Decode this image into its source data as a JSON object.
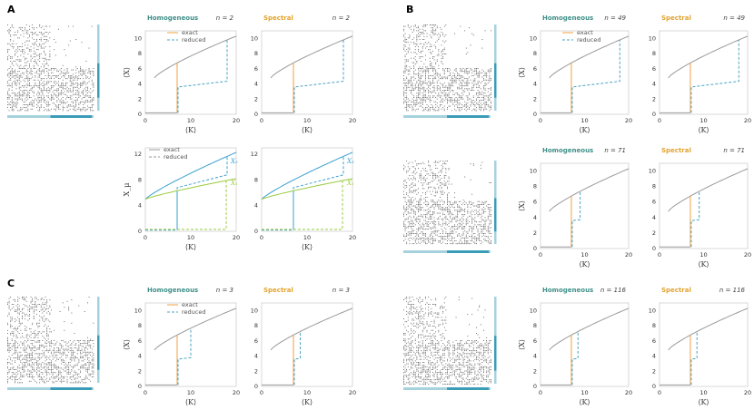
{
  "colors": {
    "homogeneous": "#3f8f88",
    "spectral": "#e3a32e",
    "exact": "#9a9a9a",
    "reduced": "#4aa3c5",
    "exactSel": "#f0a040",
    "blue": "#3a9fd0",
    "green": "#9acb3e",
    "bar_light": "#a6d2de",
    "bar_dark": "#3b9cb8"
  },
  "panels": [
    {
      "id": "a",
      "label": "A"
    },
    {
      "id": "b",
      "label": "B"
    },
    {
      "id": "c",
      "label": "C"
    }
  ],
  "legend": {
    "exact": "exact",
    "reduced": "reduced"
  },
  "chart_data": [
    {
      "id": "A-hom",
      "type": "line",
      "title": "Homogeneous",
      "n_label": "n = 2",
      "xlabel": "⟨K⟩",
      "ylabel": "⟨X⟩",
      "xlim": [
        0,
        20
      ],
      "ylim": [
        0,
        11
      ],
      "xticks": [
        "0",
        "10",
        "20"
      ],
      "yticks": [
        "0",
        "2",
        "4",
        "6",
        "8",
        "10"
      ],
      "legend": true,
      "exact": {
        "x0": 2,
        "x1": 20,
        "y0": 4.8,
        "y1": 10.3,
        "jump": 7
      },
      "reduced": {
        "jump_up": 7,
        "low": 3.7,
        "high_to": 17.8,
        "jump2": 18.2,
        "level_mid": 4.6,
        "y0": 5.0,
        "y1": 10.3
      }
    },
    {
      "id": "A-spec",
      "type": "line",
      "title": "Spectral",
      "n_label": "n = 2",
      "xlabel": "⟨K⟩",
      "ylabel": "",
      "xlim": [
        0,
        20
      ],
      "ylim": [
        0,
        11
      ],
      "xticks": [
        "0",
        "10",
        "20"
      ],
      "yticks": [
        "0",
        "2",
        "4",
        "6",
        "8",
        "10"
      ],
      "legend": false,
      "exact": {
        "x0": 2,
        "x1": 20,
        "y0": 4.8,
        "y1": 10.3,
        "jump": 7
      },
      "reduced": {
        "jump_up": 7,
        "low": 3.7,
        "high_to": 17.8,
        "jump2": 18.2,
        "level_mid": 4.6,
        "y0": 5.0,
        "y1": 10.3
      }
    },
    {
      "id": "A-hom2",
      "type": "line",
      "title": "",
      "n_label": "",
      "xlabel": "⟨K⟩",
      "ylabel": "X_μ",
      "xlim": [
        0,
        20
      ],
      "ylim": [
        0,
        13
      ],
      "xticks": [
        "0",
        "10",
        "20"
      ],
      "yticks": [
        "0",
        "4",
        "8",
        "12"
      ],
      "legend": true,
      "curves_label": [
        "X₁",
        "X₂"
      ]
    },
    {
      "id": "A-spec2",
      "type": "line",
      "title": "",
      "n_label": "",
      "xlabel": "⟨K⟩",
      "ylabel": "",
      "xlim": [
        0,
        20
      ],
      "ylim": [
        0,
        13
      ],
      "xticks": [
        "0",
        "10",
        "20"
      ],
      "yticks": [
        "0",
        "4",
        "8",
        "12"
      ],
      "legend": false,
      "curves_label": [
        "X₁",
        "X₂"
      ]
    },
    {
      "id": "B-hom",
      "type": "line",
      "title": "Homogeneous",
      "n_label": "n = 49",
      "xlabel": "⟨K⟩",
      "ylabel": "⟨X⟩",
      "xlim": [
        0,
        20
      ],
      "ylim": [
        0,
        11
      ],
      "xticks": [
        "0",
        "10",
        "20"
      ],
      "yticks": [
        "0",
        "2",
        "4",
        "6",
        "8",
        "10"
      ],
      "legend": true
    },
    {
      "id": "B-spec",
      "type": "line",
      "title": "Spectral",
      "n_label": "n = 49",
      "xlabel": "⟨K⟩",
      "ylabel": "",
      "xlim": [
        0,
        20
      ],
      "ylim": [
        0,
        11
      ],
      "xticks": [
        "0",
        "10",
        "20"
      ],
      "yticks": [
        "0",
        "2",
        "4",
        "6",
        "8",
        "10"
      ],
      "legend": false
    },
    {
      "id": "B-hom2",
      "type": "line",
      "title": "Homogeneous",
      "n_label": "n = 71",
      "xlabel": "⟨K⟩",
      "ylabel": "⟨X⟩",
      "xlim": [
        0,
        20
      ],
      "ylim": [
        0,
        11
      ],
      "xticks": [
        "0",
        "10",
        "20"
      ],
      "yticks": [
        "0",
        "2",
        "4",
        "6",
        "8",
        "10"
      ],
      "legend": false
    },
    {
      "id": "B-spec2",
      "type": "line",
      "title": "Spectral",
      "n_label": "n = 71",
      "xlabel": "⟨K⟩",
      "ylabel": "",
      "xlim": [
        0,
        20
      ],
      "ylim": [
        0,
        11
      ],
      "xticks": [
        "0",
        "10",
        "20"
      ],
      "yticks": [
        "0",
        "2",
        "4",
        "6",
        "8",
        "10"
      ],
      "legend": false
    },
    {
      "id": "C-hom",
      "type": "line",
      "title": "Homogeneous",
      "n_label": "n = 3",
      "xlabel": "⟨K⟩",
      "ylabel": "⟨X⟩",
      "xlim": [
        0,
        20
      ],
      "ylim": [
        0,
        11
      ],
      "xticks": [
        "0",
        "10",
        "20"
      ],
      "yticks": [
        "0",
        "2",
        "4",
        "6",
        "8",
        "10"
      ],
      "legend": true
    },
    {
      "id": "C-spec",
      "type": "line",
      "title": "Spectral",
      "n_label": "n = 3",
      "xlabel": "⟨K⟩",
      "ylabel": "",
      "xlim": [
        0,
        20
      ],
      "ylim": [
        0,
        11
      ],
      "xticks": [
        "0",
        "10",
        "20"
      ],
      "yticks": [
        "0",
        "2",
        "4",
        "6",
        "8",
        "10"
      ],
      "legend": false
    },
    {
      "id": "D-hom",
      "type": "line",
      "title": "Homogeneous",
      "n_label": "n = 116",
      "xlabel": "⟨K⟩",
      "ylabel": "⟨X⟩",
      "xlim": [
        0,
        20
      ],
      "ylim": [
        0,
        11
      ],
      "xticks": [
        "0",
        "10",
        "20"
      ],
      "yticks": [
        "0",
        "2",
        "4",
        "6",
        "8",
        "10"
      ],
      "legend": false
    },
    {
      "id": "D-spec",
      "type": "line",
      "title": "Spectral",
      "n_label": "n = 116",
      "xlabel": "⟨K⟩",
      "ylabel": "",
      "xlim": [
        0,
        20
      ],
      "ylim": [
        0,
        11
      ],
      "xticks": [
        "0",
        "10",
        "20"
      ],
      "yticks": [
        "0",
        "2",
        "4",
        "6",
        "8",
        "10"
      ],
      "legend": false
    }
  ]
}
